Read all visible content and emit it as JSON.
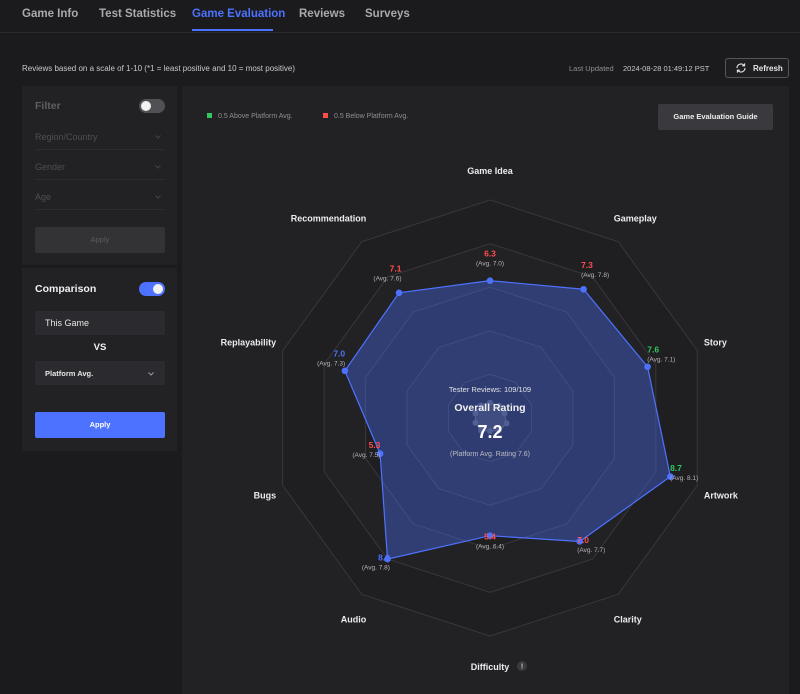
{
  "tabs": [
    {
      "label": "Game Info",
      "active": false
    },
    {
      "label": "Test Statistics",
      "active": false
    },
    {
      "label": "Game Evaluation",
      "active": true
    },
    {
      "label": "Reviews",
      "active": false
    },
    {
      "label": "Surveys",
      "active": false
    }
  ],
  "header": {
    "scale_note": "Reviews based on a scale of 1-10 (*1 = least positive and 10 = most positive)",
    "last_updated_label": "Last Updated",
    "last_updated_value": "2024-08-28 01:49:12 PST",
    "refresh_label": "Refresh",
    "refresh_icon": "refresh-icon"
  },
  "filter": {
    "title": "Filter",
    "enabled": false,
    "fields": [
      {
        "placeholder": "Region/Country"
      },
      {
        "placeholder": "Gender"
      },
      {
        "placeholder": "Age"
      }
    ],
    "apply_label": "Apply"
  },
  "comparison": {
    "title": "Comparison",
    "enabled": true,
    "this_game": "This Game",
    "vs": "VS",
    "selected": "Platform Avg.",
    "apply_label": "Apply"
  },
  "legend": {
    "above": "0.5 Above Platform Avg.",
    "below": "0.5 Below Platform Avg."
  },
  "guide_label": "Game Evaluation Guide",
  "center": {
    "tester_reviews": "Tester Reviews: 109/109",
    "overall_label": "Overall Rating",
    "overall_value": "7.2",
    "platform_avg": "(Platform Avg. Rating 7.6)"
  },
  "colors": {
    "accent": "#4d72ff",
    "above": "#2fc85a",
    "below": "#ff4d4d",
    "neutral": "#4d72ff"
  },
  "chart_data": {
    "type": "radar",
    "scale_max": 10,
    "axes": [
      {
        "label": "Game Idea",
        "value": "6.3",
        "avg": "(Avg. 7.0)",
        "status": "below"
      },
      {
        "label": "Gameplay",
        "value": "7.3",
        "avg": "(Avg. 7.8)",
        "status": "below"
      },
      {
        "label": "Story",
        "value": "7.6",
        "avg": "(Avg. 7.1)",
        "status": "above"
      },
      {
        "label": "Artwork",
        "value": "8.7",
        "avg": "(Avg. 8.1)",
        "status": "above"
      },
      {
        "label": "Clarity",
        "value": "7.0",
        "avg": "(Avg. 7.7)",
        "status": "below"
      },
      {
        "label": "Difficulty",
        "value": "5.4",
        "avg": "(Avg. 6.4)",
        "status": "below",
        "info_icon": "info-icon",
        "info_glyph": "!"
      },
      {
        "label": "Audio",
        "value": "8.0",
        "avg": "(Avg. 7.8)",
        "status": "neutral"
      },
      {
        "label": "Bugs",
        "value": "5.3",
        "avg": "(Avg. 7.5)",
        "status": "below"
      },
      {
        "label": "Replayability",
        "value": "7.0",
        "avg": "(Avg. 7.3)",
        "status": "neutral"
      },
      {
        "label": "Recommendation",
        "value": "7.1",
        "avg": "(Avg. 7.6)",
        "status": "below"
      }
    ]
  }
}
